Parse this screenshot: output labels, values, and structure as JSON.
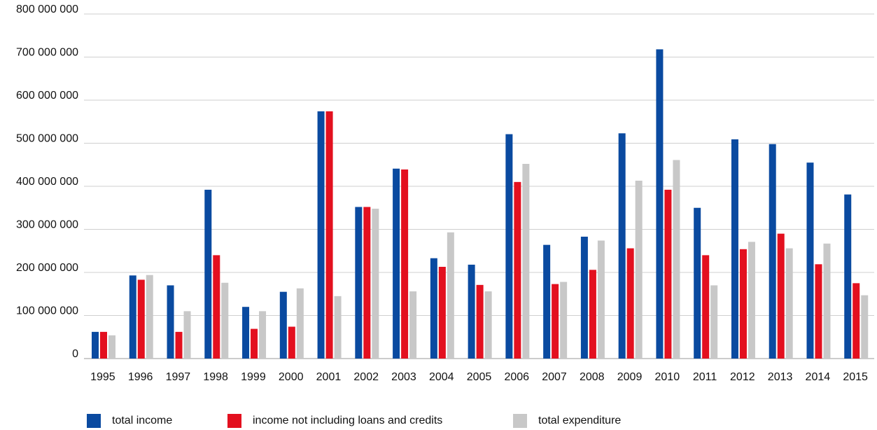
{
  "colors": {
    "total_income": "#0a4aa0",
    "income_not_including_loans_and_credits": "#e3101f",
    "total_expenditure": "#c8c8c8",
    "grid": "#cfcfcf",
    "axis": "#9a9a9a"
  },
  "legend": {
    "items": [
      {
        "label": "total income",
        "color": "#0a4aa0"
      },
      {
        "label": "income not including loans and credits",
        "color": "#e3101f"
      },
      {
        "label": "total expenditure",
        "color": "#c8c8c8"
      }
    ]
  },
  "chart_data": {
    "type": "bar",
    "categories": [
      "1995",
      "1996",
      "1997",
      "1998",
      "1999",
      "2000",
      "2001",
      "2002",
      "2003",
      "2004",
      "2005",
      "2006",
      "2007",
      "2008",
      "2009",
      "2010",
      "2011",
      "2012",
      "2013",
      "2014",
      "2015"
    ],
    "series": [
      {
        "name": "total income",
        "color": "#0a4aa0",
        "values": [
          62000000,
          193000000,
          170000000,
          392000000,
          120000000,
          155000000,
          574000000,
          352000000,
          441000000,
          233000000,
          218000000,
          521000000,
          264000000,
          283000000,
          523000000,
          718000000,
          350000000,
          509000000,
          498000000,
          455000000,
          381000000
        ]
      },
      {
        "name": "income not including loans and credits",
        "color": "#e3101f",
        "values": [
          62000000,
          183000000,
          62000000,
          240000000,
          69000000,
          74000000,
          574000000,
          352000000,
          439000000,
          213000000,
          171000000,
          410000000,
          173000000,
          206000000,
          256000000,
          392000000,
          240000000,
          254000000,
          290000000,
          219000000,
          175000000
        ]
      },
      {
        "name": "total expenditure",
        "color": "#c8c8c8",
        "values": [
          54000000,
          194000000,
          110000000,
          176000000,
          110000000,
          163000000,
          145000000,
          348000000,
          156000000,
          293000000,
          156000000,
          452000000,
          178000000,
          274000000,
          413000000,
          461000000,
          170000000,
          271000000,
          256000000,
          267000000,
          147000000
        ]
      }
    ],
    "ylim": [
      0,
      800000000
    ],
    "yticks": [
      0,
      100000000,
      200000000,
      300000000,
      400000000,
      500000000,
      600000000,
      700000000,
      800000000
    ],
    "ytick_labels": [
      "0",
      "100 000 000",
      "200 000 000",
      "300 000 000",
      "400 000 000",
      "500 000 000",
      "600 000 000",
      "700 000 000",
      "800 000 000"
    ],
    "grid": true,
    "legend_position": "bottom-left",
    "title": "",
    "xlabel": "",
    "ylabel": ""
  }
}
